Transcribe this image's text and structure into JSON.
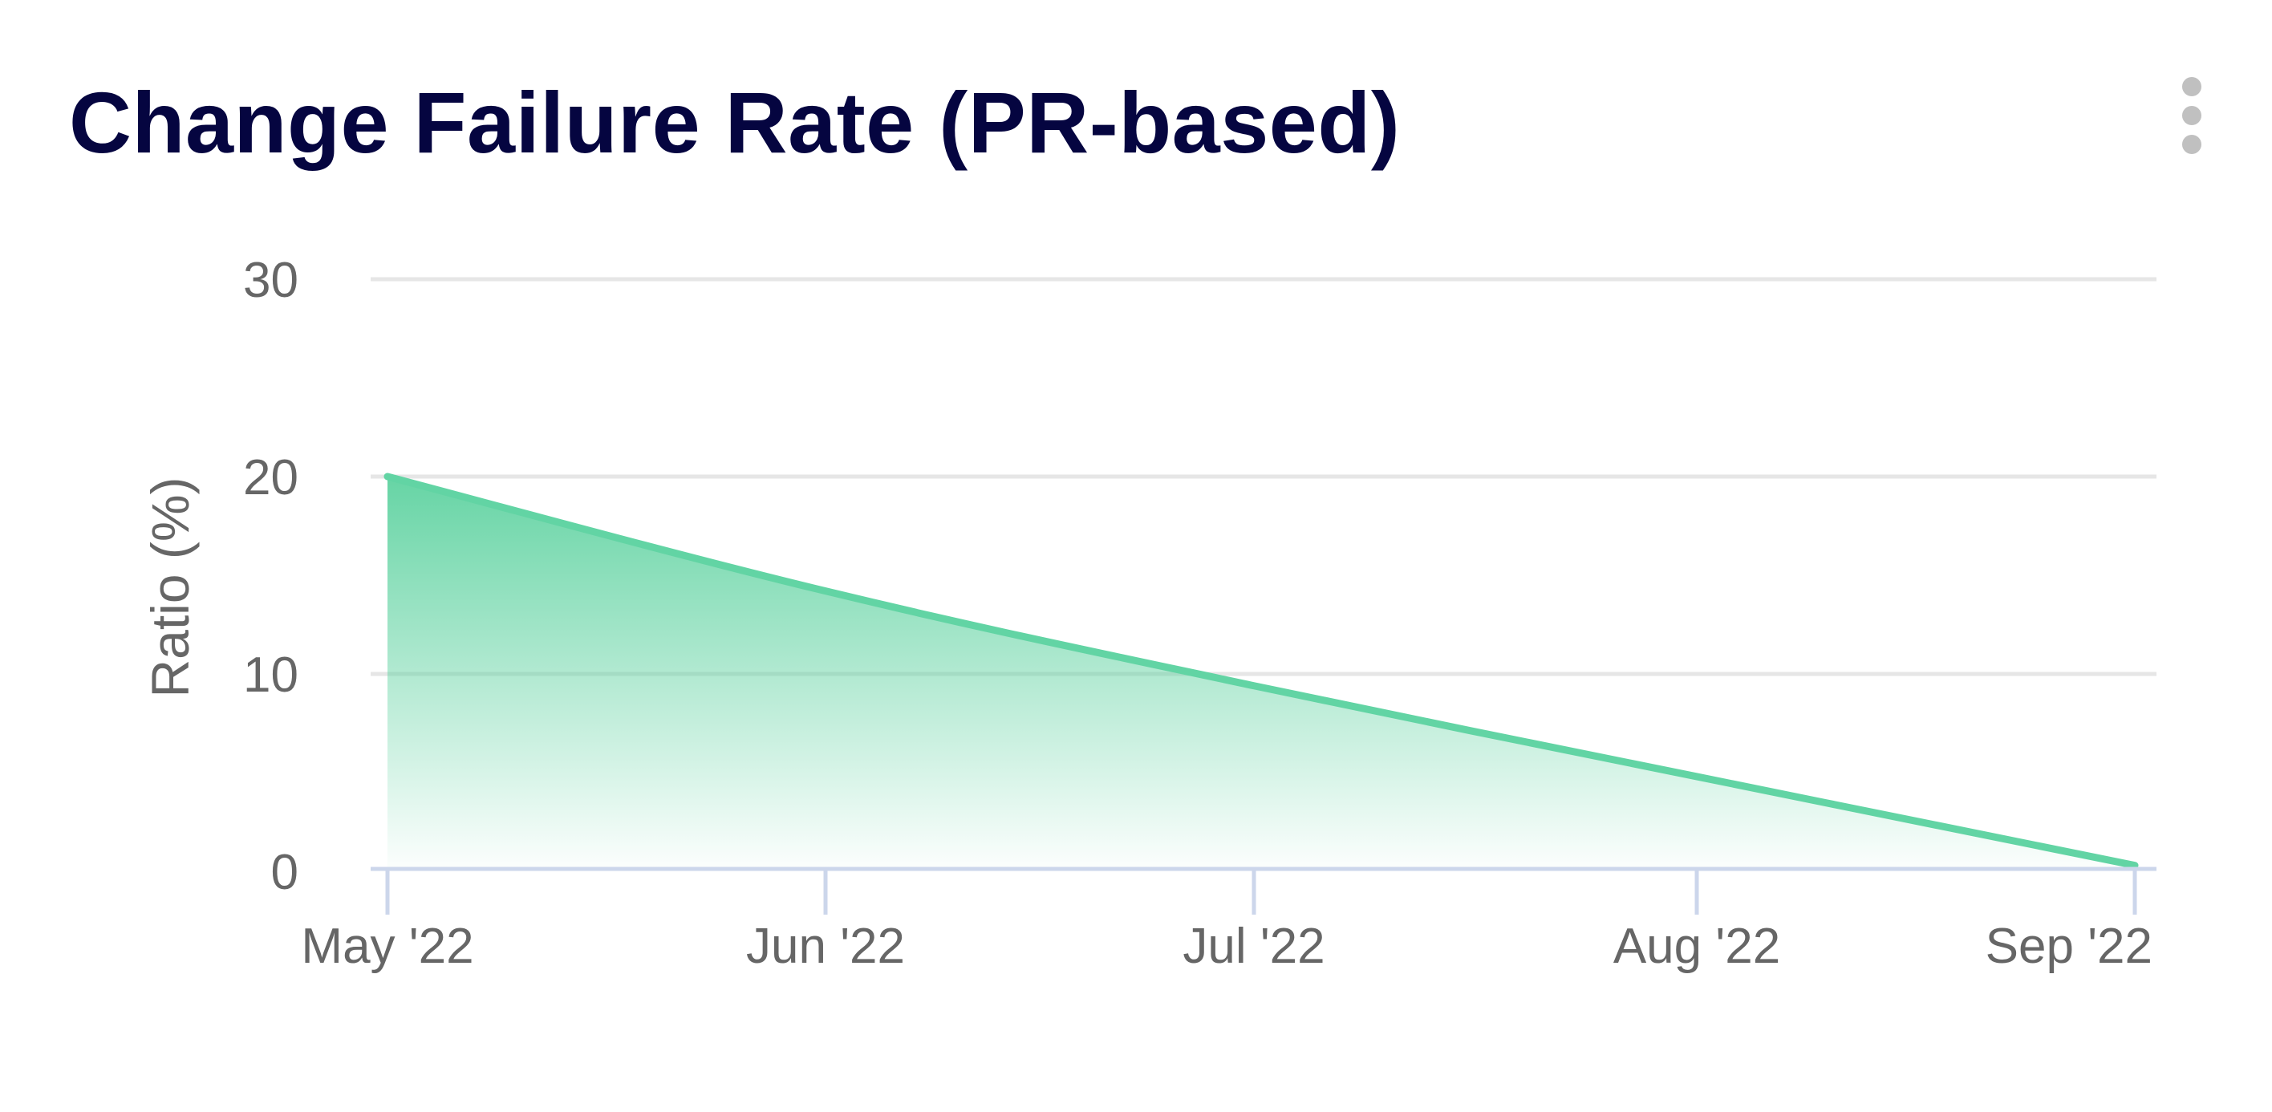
{
  "card": {
    "title": "Change Failure Rate (PR-based)",
    "menu_icon": "kebab-vertical-icon"
  },
  "colors": {
    "title": "#050540",
    "line": "#62d4a4",
    "fill_top": "#5ed2a0",
    "grid": "#e6e6e6",
    "axis": "#ccd6eb",
    "label": "#666666",
    "menu_dots": "#c0c0c0"
  },
  "chart_data": {
    "type": "area",
    "title": "Change Failure Rate (PR-based)",
    "xlabel": "",
    "ylabel": "Ratio (%)",
    "categories": [
      "May '22",
      "Jun '22",
      "Jul '22",
      "Aug '22",
      "Sep '22"
    ],
    "x_ticks": [
      "May '22",
      "Jun '22",
      "Jul '22",
      "Aug '22",
      "Sep '22"
    ],
    "y_ticks": [
      0,
      10,
      20,
      30
    ],
    "ylim": [
      0,
      30
    ],
    "grid": true,
    "legend": "none",
    "series": [
      {
        "name": "Change Failure Rate",
        "values": [
          20.0,
          14.2,
          9.4,
          4.8,
          0.3
        ]
      }
    ]
  }
}
